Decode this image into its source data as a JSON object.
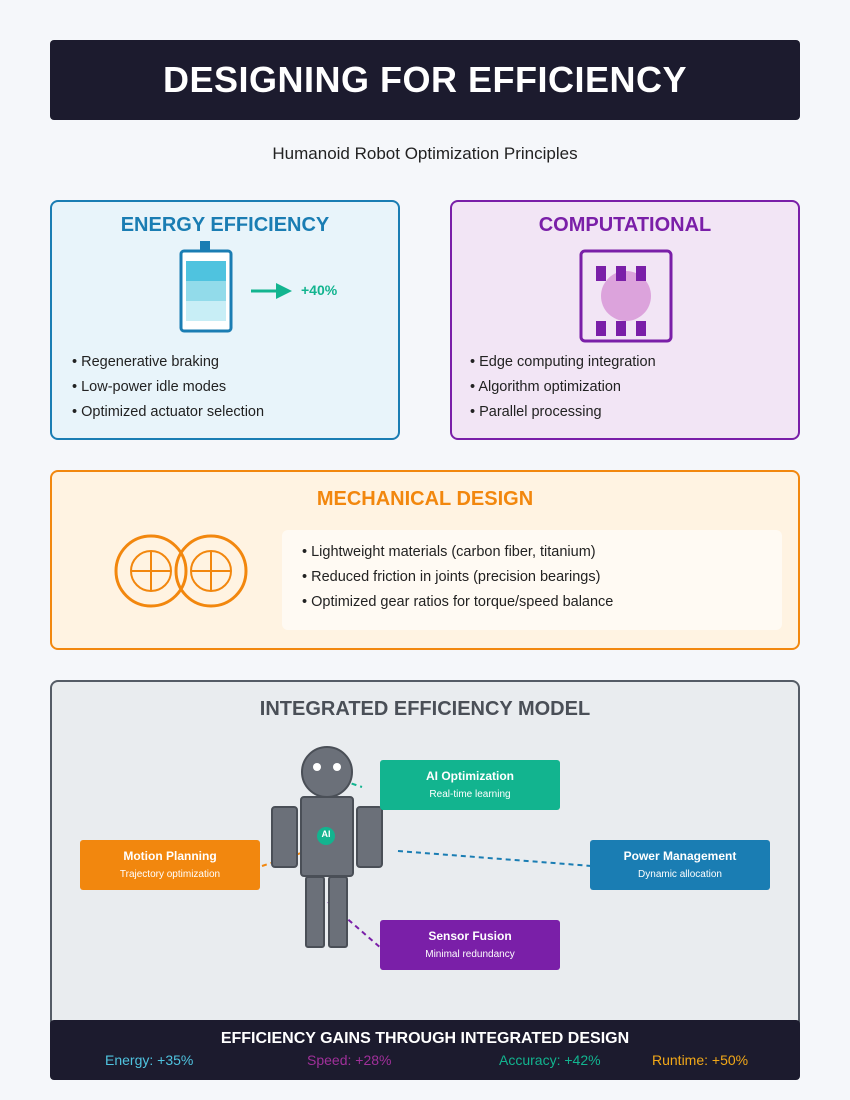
{
  "title": "DESIGNING FOR EFFICIENCY",
  "subtitle": "Humanoid Robot Optimization Principles",
  "energy": {
    "heading": "ENERGY EFFICIENCY",
    "gain_label": "+40%",
    "items": [
      "Regenerative braking",
      "Low-power idle modes",
      "Optimized actuator selection"
    ]
  },
  "computational": {
    "heading": "COMPUTATIONAL",
    "items": [
      "Edge computing integration",
      "Algorithm optimization",
      "Parallel processing"
    ]
  },
  "mechanical": {
    "heading": "MECHANICAL DESIGN",
    "items": [
      "Lightweight materials (carbon fiber, titanium)",
      "Reduced friction in joints (precision bearings)",
      "Optimized gear ratios for torque/speed balance"
    ]
  },
  "model": {
    "heading": "INTEGRATED EFFICIENCY MODEL",
    "robot_chest_label": "AI",
    "callouts": {
      "ai": {
        "title": "AI Optimization",
        "subtitle": "Real-time learning",
        "color": "#12b48f"
      },
      "motion": {
        "title": "Motion Planning",
        "subtitle": "Trajectory optimization",
        "color": "#f2870e"
      },
      "power": {
        "title": "Power Management",
        "subtitle": "Dynamic allocation",
        "color": "#1a7db3"
      },
      "sensor": {
        "title": "Sensor Fusion",
        "subtitle": "Minimal redundancy",
        "color": "#7a1fa8"
      }
    }
  },
  "gains": {
    "title": "EFFICIENCY GAINS THROUGH INTEGRATED DESIGN",
    "items": [
      {
        "label": "Energy: +35%",
        "color": "#4fc3df"
      },
      {
        "label": "Speed: +28%",
        "color": "#a0309a"
      },
      {
        "label": "Accuracy: +42%",
        "color": "#12b48f"
      },
      {
        "label": "Runtime: +50%",
        "color": "#f2a818"
      }
    ]
  }
}
